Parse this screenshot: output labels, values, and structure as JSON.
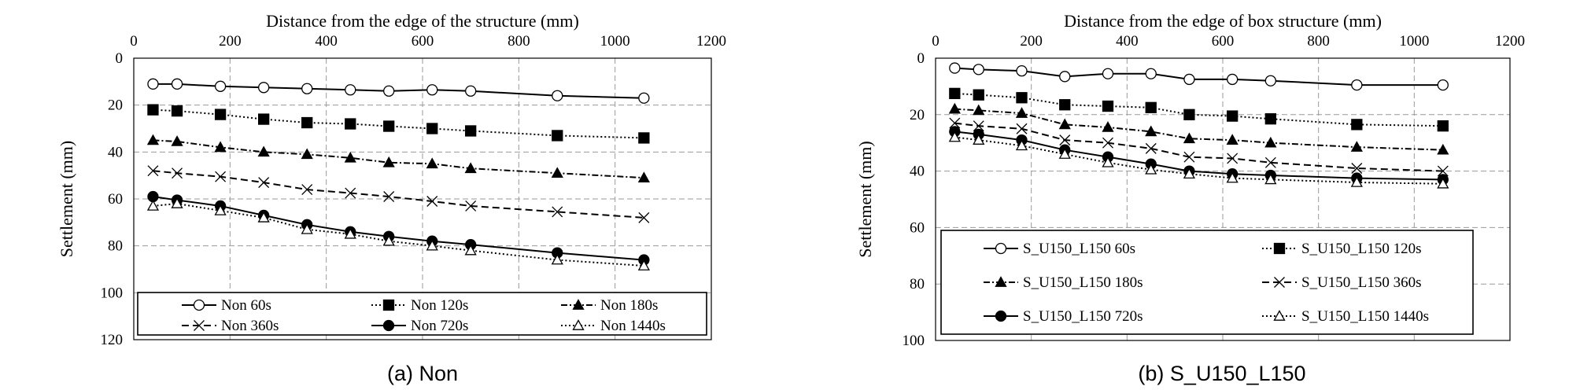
{
  "chart_data": [
    {
      "type": "line",
      "caption": "(a) Non",
      "xlabel": "Distance from the edge of the structure (mm)",
      "ylabel": "Settlement (mm)",
      "xlim": [
        0,
        1200
      ],
      "ylim": [
        0,
        120
      ],
      "y_inverted": true,
      "x_axis_position": "top",
      "xticks": [
        0,
        200,
        400,
        600,
        800,
        1000,
        1200
      ],
      "yticks": [
        0,
        20,
        40,
        60,
        80,
        100,
        120
      ],
      "grid": true,
      "legend_position": "bottom",
      "x": [
        40,
        90,
        180,
        270,
        360,
        450,
        530,
        620,
        700,
        880,
        1060
      ],
      "series": [
        {
          "name": "Non 60s",
          "marker": "open-circle",
          "dash": "solid",
          "values": [
            11,
            11,
            12,
            12.5,
            13,
            13.5,
            14,
            13.5,
            14,
            16,
            17
          ]
        },
        {
          "name": "Non 120s",
          "marker": "filled-square",
          "dash": "dotted",
          "values": [
            22,
            22.5,
            24,
            26,
            27.5,
            28,
            29,
            30,
            31,
            33,
            34
          ]
        },
        {
          "name": "Non 180s",
          "marker": "filled-triangle",
          "dash": "dashdot",
          "values": [
            35,
            35.5,
            38,
            40,
            41,
            42.5,
            44.5,
            45,
            47,
            49,
            51
          ]
        },
        {
          "name": "Non 360s",
          "marker": "cross",
          "dash": "dashed",
          "values": [
            48,
            49,
            50.5,
            53,
            56,
            57.5,
            59,
            61,
            63,
            65.5,
            68
          ]
        },
        {
          "name": "Non 720s",
          "marker": "filled-circle",
          "dash": "solid",
          "values": [
            59,
            60.5,
            63,
            67,
            71,
            74,
            76,
            78,
            79.5,
            83,
            86
          ]
        },
        {
          "name": "Non 1440s",
          "marker": "open-triangle",
          "dash": "dotted",
          "values": [
            63,
            62,
            65,
            68,
            73,
            75,
            78,
            80,
            82,
            86,
            88.5
          ]
        }
      ]
    },
    {
      "type": "line",
      "caption": "(b) S_U150_L150",
      "xlabel": "Distance from the edge of box structure (mm)",
      "ylabel": "Settlement (mm)",
      "xlim": [
        0,
        1200
      ],
      "ylim": [
        0,
        100
      ],
      "y_inverted": true,
      "x_axis_position": "top",
      "xticks": [
        0,
        200,
        400,
        600,
        800,
        1000,
        1200
      ],
      "yticks": [
        0,
        20,
        40,
        60,
        80,
        100
      ],
      "grid": true,
      "legend_position": "bottom",
      "x": [
        40,
        90,
        180,
        270,
        360,
        450,
        530,
        620,
        700,
        880,
        1060
      ],
      "series": [
        {
          "name": "S_U150_L150 60s",
          "marker": "open-circle",
          "dash": "solid",
          "values": [
            3.5,
            4,
            4.5,
            6.5,
            5.5,
            5.5,
            7.5,
            7.5,
            8,
            9.5,
            9.5
          ]
        },
        {
          "name": "S_U150_L150 120s",
          "marker": "filled-square",
          "dash": "dotted",
          "values": [
            12.5,
            13,
            14,
            16.5,
            17,
            17.5,
            20,
            20.5,
            21.5,
            23.5,
            24
          ]
        },
        {
          "name": "S_U150_L150 180s",
          "marker": "filled-triangle",
          "dash": "dashdot",
          "values": [
            18,
            18.5,
            19.5,
            23.5,
            24.5,
            26,
            28.5,
            29,
            30,
            31.5,
            32.5
          ]
        },
        {
          "name": "S_U150_L150 360s",
          "marker": "cross",
          "dash": "dashed",
          "values": [
            23,
            24,
            25,
            29,
            30,
            32,
            35,
            35.5,
            37,
            39,
            40
          ]
        },
        {
          "name": "S_U150_L150 720s",
          "marker": "filled-circle",
          "dash": "solid",
          "values": [
            26,
            27,
            29,
            32.5,
            35,
            37.5,
            40,
            41,
            41.5,
            42.5,
            43
          ]
        },
        {
          "name": "S_U150_L150 1440s",
          "marker": "open-triangle",
          "dash": "dotted",
          "values": [
            28,
            29,
            31,
            34,
            37,
            39.5,
            41,
            42.5,
            43,
            44,
            44.5
          ]
        }
      ]
    }
  ]
}
